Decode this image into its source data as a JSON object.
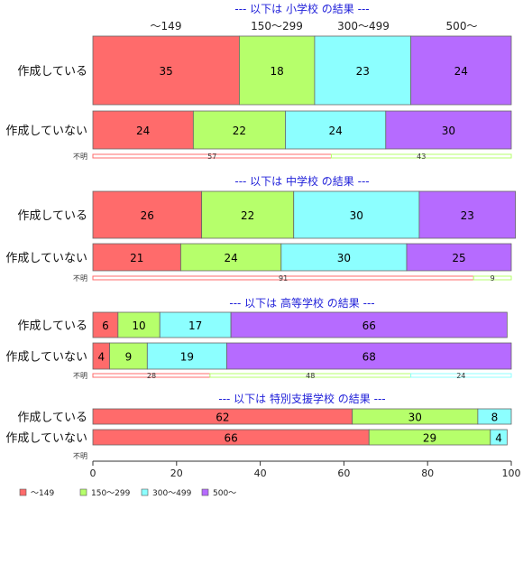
{
  "colors": {
    "accent_title": "#1f1fd9",
    "series": [
      "#ff6b6b",
      "#b6ff6b",
      "#8cffff",
      "#b66bff"
    ],
    "border": "#666666"
  },
  "chart_data": {
    "type": "bar",
    "orientation": "horizontal-stacked-percent",
    "xlim": [
      0,
      100
    ],
    "xticks": [
      "0",
      "20",
      "40",
      "60",
      "80",
      "100"
    ],
    "column_headers": [
      "～149",
      "150～299",
      "300～499",
      "500～"
    ],
    "legend": {
      "placement": "bottom-left",
      "entries": [
        "～149",
        "150～299",
        "300～499",
        "500～"
      ]
    },
    "groups": [
      {
        "title": "--- 以下は 小学校 の結果 ---",
        "rows": [
          {
            "label": "作成している",
            "values": [
              35,
              18,
              23,
              24
            ]
          },
          {
            "label": "作成していない",
            "values": [
              24,
              22,
              24,
              30
            ]
          }
        ],
        "unknown": {
          "label": "不明",
          "values": [
            57,
            43
          ]
        }
      },
      {
        "title": "--- 以下は 中学校 の結果 ---",
        "rows": [
          {
            "label": "作成している",
            "values": [
              26,
              22,
              30,
              23
            ]
          },
          {
            "label": "作成していない",
            "values": [
              21,
              24,
              30,
              25
            ]
          }
        ],
        "unknown": {
          "label": "不明",
          "values": [
            91,
            9
          ]
        }
      },
      {
        "title": "--- 以下は 高等学校 の結果 ---",
        "rows": [
          {
            "label": "作成している",
            "values": [
              6,
              10,
              17,
              66
            ]
          },
          {
            "label": "作成していない",
            "values": [
              4,
              9,
              19,
              68
            ]
          }
        ],
        "unknown": {
          "label": "不明",
          "values": [
            28,
            48,
            24
          ]
        }
      },
      {
        "title": "--- 以下は 特別支援学校 の結果 ---",
        "rows": [
          {
            "label": "作成している",
            "values": [
              62,
              30,
              8
            ]
          },
          {
            "label": "作成していない",
            "values": [
              66,
              29,
              4
            ]
          }
        ],
        "unknown": {
          "label": "不明",
          "values": []
        }
      }
    ]
  }
}
